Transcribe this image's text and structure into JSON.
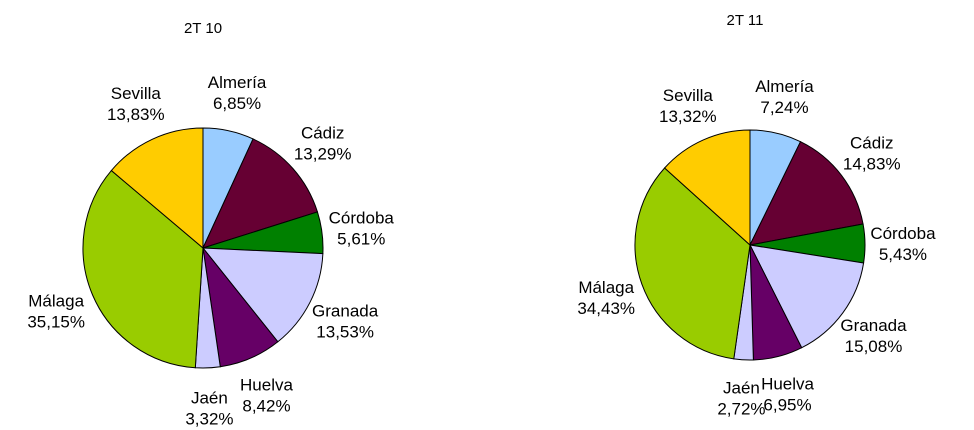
{
  "chart_data": [
    {
      "type": "pie",
      "title": "2T 10",
      "categories": [
        "Almería",
        "Cádiz",
        "Córdoba",
        "Granada",
        "Huelva",
        "Jaén",
        "Málaga",
        "Sevilla"
      ],
      "values": [
        6.85,
        13.29,
        5.61,
        13.53,
        8.42,
        3.32,
        35.15,
        13.83
      ],
      "value_labels": [
        "6,85%",
        "13,29%",
        "5,61%",
        "13,53%",
        "8,42%",
        "3,32%",
        "35,15%",
        "13,83%"
      ],
      "colors": [
        "#99ccff",
        "#660033",
        "#008000",
        "#ccccff",
        "#660066",
        "#ccccff",
        "#99cc00",
        "#ffcc00"
      ]
    },
    {
      "type": "pie",
      "title": "2T 11",
      "categories": [
        "Almería",
        "Cádiz",
        "Córdoba",
        "Granada",
        "Huelva",
        "Jaén",
        "Málaga",
        "Sevilla"
      ],
      "values": [
        7.24,
        14.83,
        5.43,
        15.08,
        6.95,
        2.72,
        34.43,
        13.32
      ],
      "value_labels": [
        "7,24%",
        "14,83%",
        "5,43%",
        "15,08%",
        "6,95%",
        "2,72%",
        "34,43%",
        "13,32%"
      ],
      "colors": [
        "#99ccff",
        "#660033",
        "#008000",
        "#ccccff",
        "#660066",
        "#ccccff",
        "#99cc00",
        "#ffcc00"
      ]
    }
  ]
}
